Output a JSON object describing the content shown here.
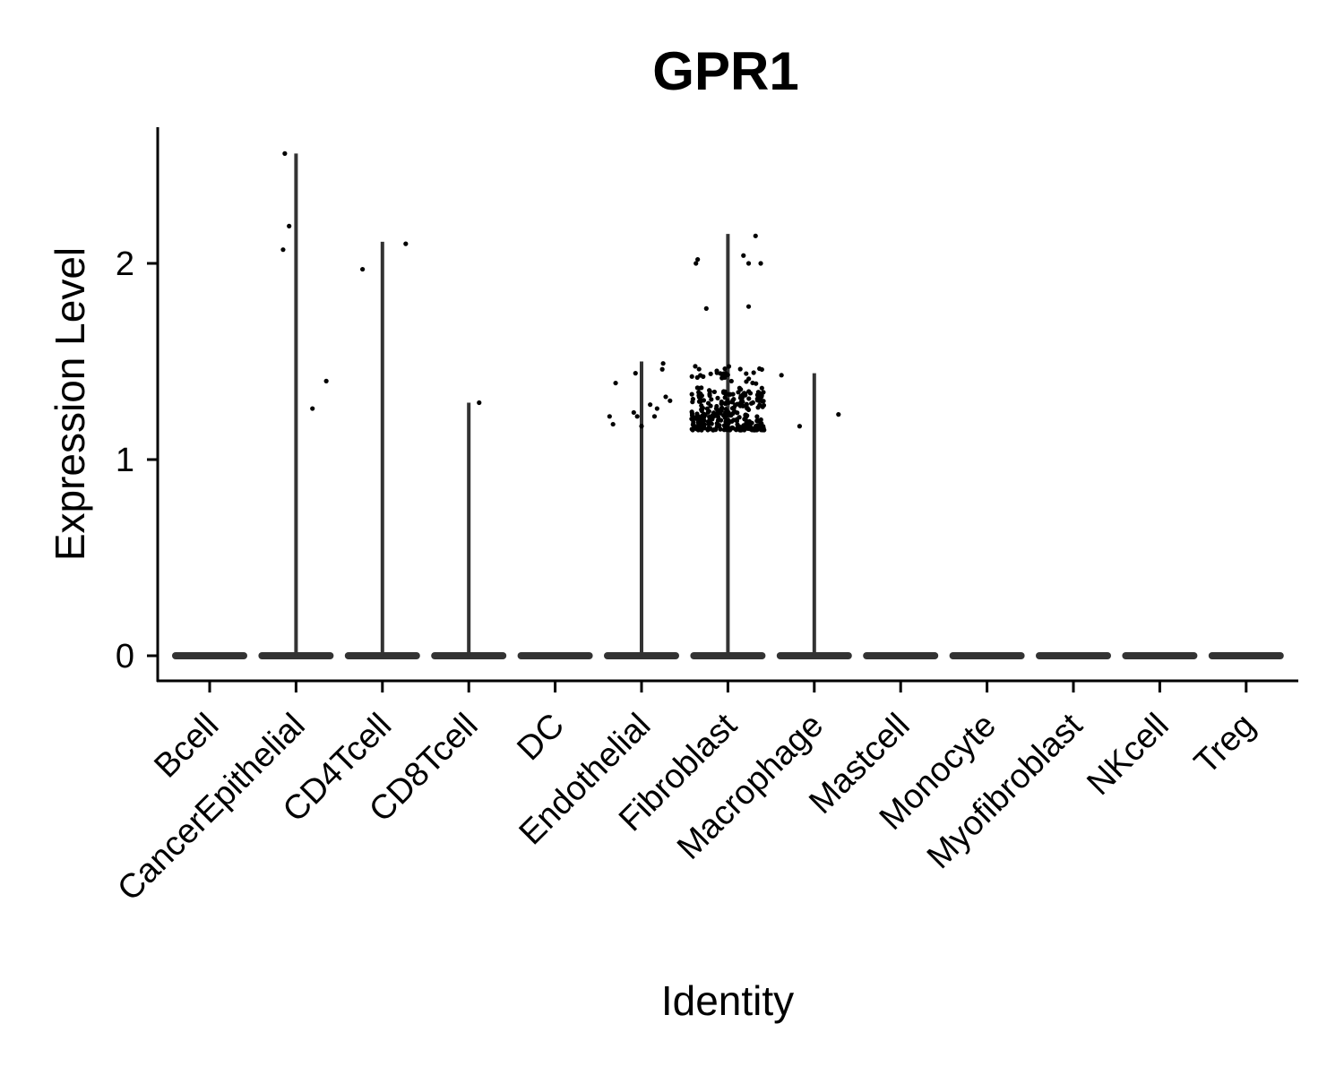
{
  "chart_data": {
    "type": "violin",
    "title": "GPR1",
    "xlabel": "Identity",
    "ylabel": "Expression Level",
    "ylim": [
      -0.13,
      2.7
    ],
    "yticks": [
      0,
      1,
      2
    ],
    "categories": [
      "Bcell",
      "CancerEpithelial",
      "CD4Tcell",
      "CD8Tcell",
      "DC",
      "Endothelial",
      "Fibroblast",
      "Macrophage",
      "Mastcell",
      "Monocyte",
      "Myofibroblast",
      "NKcell",
      "Treg"
    ],
    "max_values": [
      0,
      2.56,
      2.11,
      1.29,
      0,
      1.5,
      2.15,
      1.44,
      0,
      0,
      0,
      0,
      0
    ],
    "grid": false,
    "legend": "none",
    "point_color": "#000000",
    "violin_color": "#333333",
    "points": [
      {
        "category": "CancerEpithelial",
        "x_offset": -0.13,
        "y": 2.56
      },
      {
        "category": "CancerEpithelial",
        "x_offset": -0.08,
        "y": 2.19
      },
      {
        "category": "CancerEpithelial",
        "x_offset": -0.15,
        "y": 2.07
      },
      {
        "category": "CancerEpithelial",
        "x_offset": 0.35,
        "y": 1.4
      },
      {
        "category": "CancerEpithelial",
        "x_offset": 0.19,
        "y": 1.26
      },
      {
        "category": "CD4Tcell",
        "x_offset": -0.23,
        "y": 1.97
      },
      {
        "category": "CD4Tcell",
        "x_offset": 0.27,
        "y": 2.1
      },
      {
        "category": "CD8Tcell",
        "x_offset": 0.12,
        "y": 1.29
      },
      {
        "category": "Endothelial",
        "x_offset": -0.3,
        "y": 1.39
      },
      {
        "category": "Endothelial",
        "x_offset": -0.07,
        "y": 1.44
      },
      {
        "category": "Endothelial",
        "x_offset": 0.25,
        "y": 1.49
      },
      {
        "category": "Endothelial",
        "x_offset": 0.24,
        "y": 1.46
      },
      {
        "category": "Endothelial",
        "x_offset": -0.37,
        "y": 1.22
      },
      {
        "category": "Endothelial",
        "x_offset": -0.33,
        "y": 1.18
      },
      {
        "category": "Endothelial",
        "x_offset": -0.05,
        "y": 1.22
      },
      {
        "category": "Endothelial",
        "x_offset": -0.09,
        "y": 1.24
      },
      {
        "category": "Endothelial",
        "x_offset": 0.0,
        "y": 1.17
      },
      {
        "category": "Endothelial",
        "x_offset": 0.1,
        "y": 1.28
      },
      {
        "category": "Endothelial",
        "x_offset": 0.18,
        "y": 1.26
      },
      {
        "category": "Endothelial",
        "x_offset": 0.15,
        "y": 1.22
      },
      {
        "category": "Endothelial",
        "x_offset": 0.28,
        "y": 1.32
      },
      {
        "category": "Endothelial",
        "x_offset": 0.33,
        "y": 1.3
      },
      {
        "category": "Fibroblast",
        "x_offset": -0.37,
        "y": 2.0
      },
      {
        "category": "Fibroblast",
        "x_offset": -0.35,
        "y": 2.02
      },
      {
        "category": "Fibroblast",
        "x_offset": 0.32,
        "y": 2.14
      },
      {
        "category": "Fibroblast",
        "x_offset": 0.18,
        "y": 2.04
      },
      {
        "category": "Fibroblast",
        "x_offset": 0.24,
        "y": 2.0
      },
      {
        "category": "Fibroblast",
        "x_offset": 0.38,
        "y": 2.0
      },
      {
        "category": "Fibroblast",
        "x_offset": -0.25,
        "y": 1.77
      },
      {
        "category": "Fibroblast",
        "x_offset": 0.24,
        "y": 1.78
      },
      {
        "category": "Fibroblast",
        "x_offset": 0.62,
        "y": 1.43
      },
      {
        "category": "Fibroblast",
        "x_offset": 0.83,
        "y": 1.17
      },
      {
        "category": "Macrophage",
        "x_offset": 0.28,
        "y": 1.23
      }
    ]
  }
}
